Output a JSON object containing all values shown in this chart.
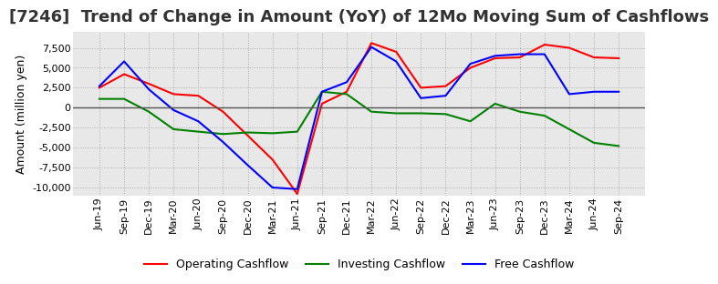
{
  "title": "[7246]  Trend of Change in Amount (YoY) of 12Mo Moving Sum of Cashflows",
  "ylabel": "Amount (million yen)",
  "ylim": [
    -11000,
    9500
  ],
  "yticks": [
    -10000,
    -7500,
    -5000,
    -2500,
    0,
    2500,
    5000,
    7500
  ],
  "bg_outer": "#ffffff",
  "bg_plot": "#e8e8e8",
  "x_labels": [
    "Jun-19",
    "Sep-19",
    "Dec-19",
    "Mar-20",
    "Jun-20",
    "Sep-20",
    "Dec-20",
    "Mar-21",
    "Jun-21",
    "Sep-21",
    "Dec-21",
    "Mar-22",
    "Jun-22",
    "Sep-22",
    "Dec-22",
    "Mar-23",
    "Jun-23",
    "Sep-23",
    "Dec-23",
    "Mar-24",
    "Jun-24",
    "Sep-24"
  ],
  "operating": [
    2500,
    4200,
    3000,
    1700,
    1500,
    -500,
    -3500,
    -6500,
    -10800,
    500,
    2000,
    8100,
    7000,
    2500,
    2700,
    5000,
    6200,
    6300,
    7900,
    7500,
    6300,
    6200
  ],
  "investing": [
    1100,
    1100,
    -500,
    -2700,
    -3000,
    -3300,
    -3100,
    -3200,
    -3000,
    2000,
    1700,
    -500,
    -700,
    -700,
    -800,
    -1700,
    500,
    -500,
    -1000,
    -2700,
    -4400,
    -4800
  ],
  "free": [
    2700,
    5800,
    2300,
    -300,
    -1700,
    -4300,
    -7200,
    -10000,
    -10200,
    2000,
    3200,
    7600,
    5800,
    1200,
    1500,
    5500,
    6500,
    6700,
    6700,
    1700,
    2000,
    2000
  ],
  "operating_color": "#ff0000",
  "investing_color": "#008000",
  "free_color": "#0000ff",
  "grid_color": "#aaaaaa",
  "solid_line_color": "#555555",
  "title_fontsize": 13,
  "label_fontsize": 9,
  "tick_fontsize": 8,
  "legend_fontsize": 9
}
